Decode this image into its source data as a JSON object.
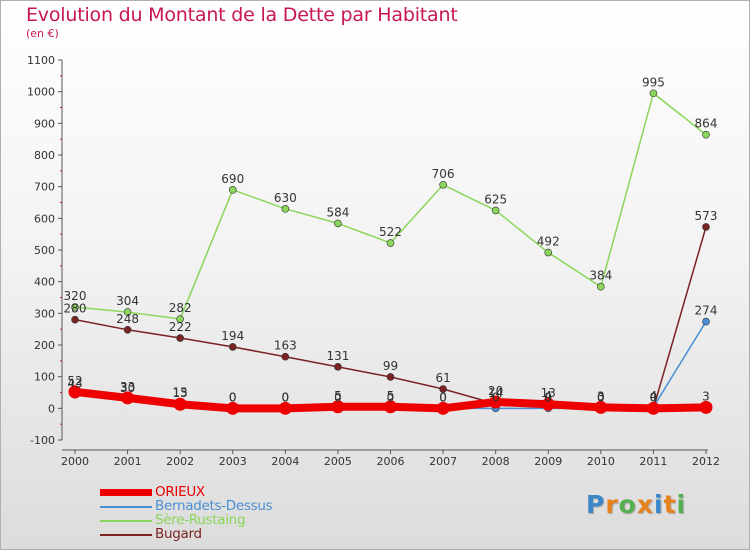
{
  "title": "Evolution du Montant de la Dette par Habitant",
  "unit": "(en €)",
  "logo": {
    "text": "Proxiti",
    "colors": [
      "#3a86c8",
      "#e8821e",
      "#55b050",
      "#e8821e",
      "#3a86c8",
      "#e8821e",
      "#55b050"
    ]
  },
  "chart_data": {
    "type": "line",
    "x": [
      "2000",
      "2001",
      "2002",
      "2003",
      "2004",
      "2005",
      "2006",
      "2007",
      "2008",
      "2009",
      "2010",
      "2011",
      "2012"
    ],
    "ylim": [
      -100,
      1100
    ],
    "yticks": [
      "-100",
      "0",
      "100",
      "200",
      "300",
      "400",
      "500",
      "600",
      "700",
      "800",
      "900",
      "1000",
      "1100"
    ],
    "grid": false,
    "legend_position": "bottom-left",
    "series": [
      {
        "name": "ORIEUX",
        "color": "#ee0000",
        "width": 8,
        "values": [
          52,
          33,
          13,
          0,
          0,
          5,
          5,
          0,
          20,
          13,
          3,
          0,
          3
        ],
        "labels": [
          "52",
          "33",
          "13",
          "0",
          "0",
          "5",
          "5",
          "0",
          "20",
          "13",
          "3",
          "0",
          "3"
        ]
      },
      {
        "name": "Bernadets-Dessus",
        "color": "#4a8fd4",
        "width": 1.5,
        "values": [
          43,
          30,
          15,
          0,
          0,
          0,
          0,
          0,
          0,
          0,
          0,
          4,
          274
        ],
        "labels": [
          "43",
          "30",
          "15",
          "0",
          "0",
          "0",
          "0",
          "0",
          "0",
          "0",
          "0",
          "4",
          "274"
        ]
      },
      {
        "name": "Sère-Rustaing",
        "color": "#8ad65a",
        "width": 1.5,
        "values": [
          320,
          304,
          282,
          690,
          630,
          584,
          522,
          706,
          625,
          492,
          384,
          995,
          864
        ],
        "labels": [
          "320",
          "304",
          "282",
          "690",
          "630",
          "584",
          "522",
          "706",
          "625",
          "492",
          "384",
          "995",
          "864"
        ]
      },
      {
        "name": "Bugard",
        "color": "#7a2222",
        "width": 1.5,
        "values": [
          280,
          248,
          222,
          194,
          163,
          131,
          99,
          61,
          14,
          4,
          0,
          0,
          573
        ],
        "labels": [
          "280",
          "248",
          "222",
          "194",
          "163",
          "131",
          "99",
          "61",
          "14",
          "4",
          "0",
          "0",
          "573"
        ]
      }
    ]
  }
}
